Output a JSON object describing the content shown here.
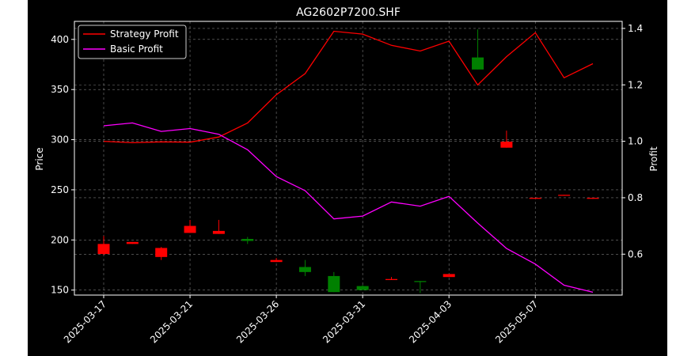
{
  "chart_data": {
    "type": "candlestick+line",
    "title": "AG2602P7200.SHF",
    "ylabel_left": "Price",
    "ylabel_right": "Profit",
    "ylim_left": [
      145,
      418
    ],
    "ylim_right": [
      0.455,
      1.425
    ],
    "yticks_left": [
      "150",
      "200",
      "250",
      "300",
      "350",
      "400"
    ],
    "yticks_right": [
      "0.6",
      "0.8",
      "1.0",
      "1.2",
      "1.4"
    ],
    "grid": true,
    "legend_position": "top-left",
    "x_labels": [
      "2025-03-17",
      "2025-03-21",
      "2025-03-26",
      "2025-03-31",
      "2025-04-03",
      "2025-05-07"
    ],
    "x_label_index": [
      0,
      3,
      6,
      9,
      12,
      15
    ],
    "candles": [
      {
        "open": 186,
        "close": 196,
        "high": 204,
        "low": 185
      },
      {
        "open": 196,
        "close": 198,
        "high": 198,
        "low": 196
      },
      {
        "open": 183,
        "close": 192,
        "high": 193,
        "low": 180
      },
      {
        "open": 207,
        "close": 214,
        "high": 220,
        "low": 207
      },
      {
        "open": 206,
        "close": 209,
        "high": 220,
        "low": 206
      },
      {
        "open": 201,
        "close": 199,
        "high": 203,
        "low": 196
      },
      {
        "open": 178,
        "close": 180,
        "high": 182,
        "low": 178
      },
      {
        "open": 173,
        "close": 168,
        "high": 180,
        "low": 164
      },
      {
        "open": 164,
        "close": 148,
        "high": 168,
        "low": 148
      },
      {
        "open": 154,
        "close": 150,
        "high": 155,
        "low": 150
      },
      {
        "open": 160,
        "close": 161,
        "high": 163,
        "low": 160
      },
      {
        "open": 159,
        "close": 158,
        "high": 159,
        "low": 147
      },
      {
        "open": 163,
        "close": 166,
        "high": 166,
        "low": 163
      },
      {
        "open": 382,
        "close": 370,
        "high": 410,
        "low": 370
      },
      {
        "open": 292,
        "close": 298,
        "high": 309,
        "low": 292
      },
      {
        "open": 241,
        "close": 242,
        "high": 242,
        "low": 241
      },
      {
        "open": 244,
        "close": 245,
        "high": 245,
        "low": 244
      },
      {
        "open": 241,
        "close": 242,
        "high": 242,
        "low": 241
      }
    ],
    "up_color": "#ff0000",
    "down_color": "#008000",
    "series": [
      {
        "name": "Strategy Profit",
        "color": "#ff0000",
        "values": [
          1.0,
          0.995,
          0.998,
          0.997,
          1.015,
          1.065,
          1.165,
          1.24,
          1.39,
          1.38,
          1.34,
          1.32,
          1.355,
          1.2,
          1.3,
          1.385,
          1.225,
          1.275
        ]
      },
      {
        "name": "Basic Profit",
        "color": "#ff00ff",
        "values": [
          1.055,
          1.065,
          1.035,
          1.045,
          1.025,
          0.97,
          0.875,
          0.825,
          0.725,
          0.735,
          0.785,
          0.77,
          0.805,
          0.71,
          0.62,
          0.565,
          0.49,
          0.465
        ]
      }
    ]
  }
}
